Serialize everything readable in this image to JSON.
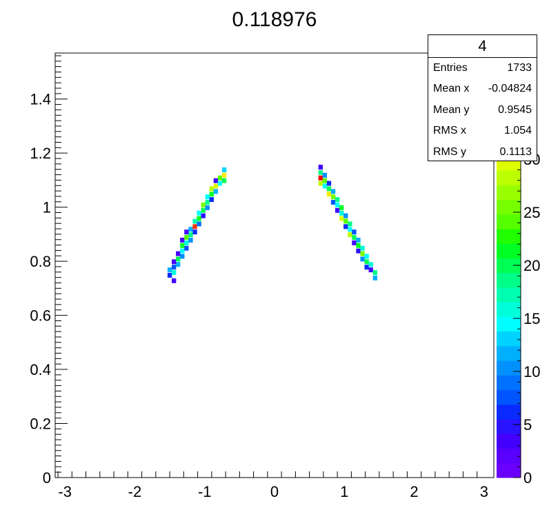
{
  "chart_data": {
    "type": "heatmap",
    "title": "0.118976",
    "xlabel": "",
    "ylabel": "",
    "xlim": [
      -3.14,
      3.14
    ],
    "ylim": [
      0,
      1.57
    ],
    "x_ticks": [
      "-3",
      "-2",
      "-1",
      "0",
      "1",
      "2",
      "3"
    ],
    "x_tick_values": [
      -3,
      -2,
      -1,
      0,
      1,
      2,
      3
    ],
    "y_ticks": [
      "0",
      "0.2",
      "0.4",
      "0.6",
      "0.8",
      "1",
      "1.2",
      "1.4"
    ],
    "y_tick_values": [
      0,
      0.2,
      0.4,
      0.6,
      0.8,
      1.0,
      1.2,
      1.4
    ],
    "bin_width_x": 0.0628,
    "bin_height_y": 0.0157,
    "z_range": [
      0,
      40
    ],
    "z_ticks": [
      "0",
      "5",
      "10",
      "15",
      "20",
      "25",
      "30"
    ],
    "z_tick_values": [
      0,
      5,
      10,
      15,
      20,
      25,
      30
    ],
    "cells": [
      [
        -1.44,
        0.73,
        3
      ],
      [
        -1.5,
        0.75,
        6
      ],
      [
        -1.5,
        0.77,
        12
      ],
      [
        -1.44,
        0.76,
        16
      ],
      [
        -1.44,
        0.78,
        8
      ],
      [
        -1.38,
        0.79,
        12
      ],
      [
        -1.44,
        0.8,
        4
      ],
      [
        -1.38,
        0.81,
        20
      ],
      [
        -1.32,
        0.82,
        10
      ],
      [
        -1.38,
        0.83,
        4
      ],
      [
        -1.32,
        0.84,
        15
      ],
      [
        -1.32,
        0.86,
        22
      ],
      [
        -1.26,
        0.85,
        8
      ],
      [
        -1.32,
        0.88,
        3
      ],
      [
        -1.26,
        0.87,
        16
      ],
      [
        -1.26,
        0.89,
        24
      ],
      [
        -1.2,
        0.88,
        10
      ],
      [
        -1.2,
        0.9,
        18
      ],
      [
        -1.26,
        0.91,
        3
      ],
      [
        -1.2,
        0.92,
        12
      ],
      [
        -1.14,
        0.91,
        6
      ],
      [
        -1.14,
        0.93,
        38
      ],
      [
        -1.14,
        0.95,
        17
      ],
      [
        -1.08,
        0.94,
        9
      ],
      [
        -1.08,
        0.96,
        22
      ],
      [
        -1.08,
        0.98,
        14
      ],
      [
        -1.02,
        0.97,
        5
      ],
      [
        -1.02,
        0.99,
        20
      ],
      [
        -1.02,
        1.01,
        25
      ],
      [
        -0.96,
        1.0,
        10
      ],
      [
        -0.96,
        1.02,
        18
      ],
      [
        -0.96,
        1.04,
        14
      ],
      [
        -0.9,
        1.03,
        6
      ],
      [
        -0.9,
        1.05,
        22
      ],
      [
        -0.9,
        1.07,
        28
      ],
      [
        -0.84,
        1.06,
        12
      ],
      [
        -0.84,
        1.08,
        30
      ],
      [
        -0.84,
        1.1,
        4
      ],
      [
        -0.78,
        1.09,
        14
      ],
      [
        -0.78,
        1.11,
        24
      ],
      [
        -0.72,
        1.1,
        20
      ],
      [
        -0.72,
        1.12,
        33
      ],
      [
        -0.72,
        1.14,
        13
      ],
      [
        0.66,
        1.15,
        4
      ],
      [
        0.66,
        1.13,
        18
      ],
      [
        0.66,
        1.11,
        39
      ],
      [
        0.66,
        1.09,
        28
      ],
      [
        0.72,
        1.12,
        10
      ],
      [
        0.72,
        1.1,
        24
      ],
      [
        0.72,
        1.08,
        15
      ],
      [
        0.78,
        1.09,
        6
      ],
      [
        0.78,
        1.07,
        20
      ],
      [
        0.78,
        1.05,
        32
      ],
      [
        0.84,
        1.06,
        12
      ],
      [
        0.84,
        1.04,
        26
      ],
      [
        0.84,
        1.02,
        8
      ],
      [
        0.9,
        1.03,
        18
      ],
      [
        0.9,
        1.01,
        14
      ],
      [
        0.9,
        0.99,
        4
      ],
      [
        0.96,
        1.0,
        22
      ],
      [
        0.96,
        0.98,
        16
      ],
      [
        0.96,
        0.96,
        30
      ],
      [
        1.02,
        0.97,
        10
      ],
      [
        1.02,
        0.95,
        24
      ],
      [
        1.02,
        0.93,
        6
      ],
      [
        1.08,
        0.94,
        18
      ],
      [
        1.08,
        0.92,
        14
      ],
      [
        1.08,
        0.9,
        28
      ],
      [
        1.14,
        0.91,
        8
      ],
      [
        1.14,
        0.89,
        20
      ],
      [
        1.14,
        0.87,
        3
      ],
      [
        1.2,
        0.88,
        12
      ],
      [
        1.2,
        0.86,
        22
      ],
      [
        1.2,
        0.84,
        5
      ],
      [
        1.26,
        0.85,
        16
      ],
      [
        1.26,
        0.83,
        26
      ],
      [
        1.26,
        0.81,
        10
      ],
      [
        1.32,
        0.82,
        14
      ],
      [
        1.32,
        0.8,
        20
      ],
      [
        1.32,
        0.78,
        6
      ],
      [
        1.38,
        0.79,
        16
      ],
      [
        1.38,
        0.77,
        4
      ],
      [
        1.44,
        0.76,
        18
      ],
      [
        1.44,
        0.74,
        12
      ]
    ],
    "palette": [
      "#6a00fe",
      "#5a00ff",
      "#4400ff",
      "#2a13ff",
      "#0a2bff",
      "#0055ff",
      "#0072ff",
      "#0091ff",
      "#00b0ff",
      "#00d3ff",
      "#00ffff",
      "#00ffd8",
      "#00ffb0",
      "#00ff88",
      "#00ff55",
      "#00ff22",
      "#22ff00",
      "#55ff00",
      "#77ff00",
      "#99ff00",
      "#bbff00",
      "#ddff00",
      "#ffff00",
      "#ffee00",
      "#ffcc00",
      "#ff9900",
      "#ff6600",
      "#ff3300",
      "#ff0000"
    ]
  },
  "stats": {
    "title": "4",
    "rows": [
      {
        "label": "Entries",
        "value": "1733"
      },
      {
        "label": "Mean x",
        "value": "-0.04824"
      },
      {
        "label": "Mean y",
        "value": "0.9545"
      },
      {
        "label": "RMS x",
        "value": "1.054"
      },
      {
        "label": "RMS y",
        "value": "0.1113"
      }
    ]
  }
}
